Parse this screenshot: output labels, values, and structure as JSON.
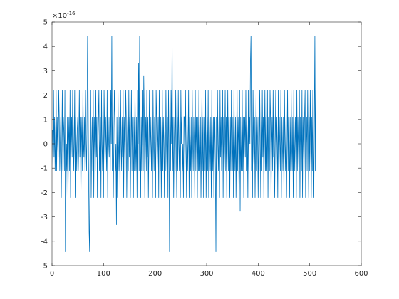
{
  "chart_data": {
    "type": "line",
    "color": "#0072bd",
    "xlim": [
      0,
      600
    ],
    "xticks": [
      0,
      100,
      200,
      300,
      400,
      500,
      600
    ],
    "ylim": [
      -5,
      5
    ],
    "yticks": [
      -5,
      -4,
      -3,
      -2,
      -1,
      0,
      1,
      2,
      3,
      4,
      5
    ],
    "y_scale_label": {
      "base": "×10",
      "exponent": "-16"
    },
    "grid": false,
    "x": [
      1,
      2,
      3,
      4,
      5,
      6,
      7,
      8,
      9,
      10,
      11,
      12,
      13,
      14,
      15,
      16,
      17,
      18,
      19,
      20,
      21,
      22,
      23,
      24,
      25,
      26,
      27,
      28,
      29,
      30,
      31,
      32,
      33,
      34,
      35,
      36,
      37,
      38,
      39,
      40,
      41,
      42,
      43,
      44,
      45,
      46,
      47,
      48,
      49,
      50,
      51,
      52,
      53,
      54,
      55,
      56,
      57,
      58,
      59,
      60,
      61,
      62,
      63,
      64,
      65,
      66,
      67,
      68,
      69,
      70,
      71,
      72,
      73,
      74,
      75,
      76,
      77,
      78,
      79,
      80,
      81,
      82,
      83,
      84,
      85,
      86,
      87,
      88,
      89,
      90,
      91,
      92,
      93,
      94,
      95,
      96,
      97,
      98,
      99,
      100,
      101,
      102,
      103,
      104,
      105,
      106,
      107,
      108,
      109,
      110,
      111,
      112,
      113,
      114,
      115,
      116,
      117,
      118,
      119,
      120,
      121,
      122,
      123,
      124,
      125,
      126,
      127,
      128,
      129,
      130,
      131,
      132,
      133,
      134,
      135,
      136,
      137,
      138,
      139,
      140,
      141,
      142,
      143,
      144,
      145,
      146,
      147,
      148,
      149,
      150,
      151,
      152,
      153,
      154,
      155,
      156,
      157,
      158,
      159,
      160,
      161,
      162,
      163,
      164,
      165,
      166,
      167,
      168,
      169,
      170,
      171,
      172,
      173,
      174,
      175,
      176,
      177,
      178,
      179,
      180,
      181,
      182,
      183,
      184,
      185,
      186,
      187,
      188,
      189,
      190,
      191,
      192,
      193,
      194,
      195,
      196,
      197,
      198,
      199,
      200,
      201,
      202,
      203,
      204,
      205,
      206,
      207,
      208,
      209,
      210,
      211,
      212,
      213,
      214,
      215,
      216,
      217,
      218,
      219,
      220,
      221,
      222,
      223,
      224,
      225,
      226,
      227,
      228,
      229,
      230,
      231,
      232,
      233,
      234,
      235,
      236,
      237,
      238,
      239,
      240,
      241,
      242,
      243,
      244,
      245,
      246,
      247,
      248,
      249,
      250,
      251,
      252,
      253,
      254,
      255,
      256,
      257,
      258,
      259,
      260,
      261,
      262,
      263,
      264,
      265,
      266,
      267,
      268,
      269,
      270,
      271,
      272,
      273,
      274,
      275,
      276,
      277,
      278,
      279,
      280,
      281,
      282,
      283,
      284,
      285,
      286,
      287,
      288,
      289,
      290,
      291,
      292,
      293,
      294,
      295,
      296,
      297,
      298,
      299,
      300,
      301,
      302,
      303,
      304,
      305,
      306,
      307,
      308,
      309,
      310,
      311,
      312,
      313,
      314,
      315,
      316,
      317,
      318,
      319,
      320,
      321,
      322,
      323,
      324,
      325,
      326,
      327,
      328,
      329,
      330,
      331,
      332,
      333,
      334,
      335,
      336,
      337,
      338,
      339,
      340,
      341,
      342,
      343,
      344,
      345,
      346,
      347,
      348,
      349,
      350,
      351,
      352,
      353,
      354,
      355,
      356,
      357,
      358,
      359,
      360,
      361,
      362,
      363,
      364,
      365,
      366,
      367,
      368,
      369,
      370,
      371,
      372,
      373,
      374,
      375,
      376,
      377,
      378,
      379,
      380,
      381,
      382,
      383,
      384,
      385,
      386,
      387,
      388,
      389,
      390,
      391,
      392,
      393,
      394,
      395,
      396,
      397,
      398,
      399,
      400,
      401,
      402,
      403,
      404,
      405,
      406,
      407,
      408,
      409,
      410,
      411,
      412,
      413,
      414,
      415,
      416,
      417,
      418,
      419,
      420,
      421,
      422,
      423,
      424,
      425,
      426,
      427,
      428,
      429,
      430,
      431,
      432,
      433,
      434,
      435,
      436,
      437,
      438,
      439,
      440,
      441,
      442,
      443,
      444,
      445,
      446,
      447,
      448,
      449,
      450,
      451,
      452,
      453,
      454,
      455,
      456,
      457,
      458,
      459,
      460,
      461,
      462,
      463,
      464,
      465,
      466,
      467,
      468,
      469,
      470,
      471,
      472,
      473,
      474,
      475,
      476,
      477,
      478,
      479,
      480,
      481,
      482,
      483,
      484,
      485,
      486,
      487,
      488,
      489,
      490,
      491,
      492,
      493,
      494,
      495,
      496,
      497,
      498,
      499,
      500,
      501,
      502,
      503,
      504,
      505,
      506,
      507,
      508,
      509,
      510,
      511,
      512
    ],
    "values": [
      0.56,
      -1.11,
      2.22,
      -0.56,
      1.11,
      -1.11,
      0,
      2.22,
      -1.11,
      1.11,
      0,
      -0.56,
      2.22,
      1.11,
      -1.11,
      0,
      1.11,
      -2.22,
      0,
      2.22,
      -1.11,
      1.11,
      0.56,
      -1.11,
      2.22,
      -4.44,
      -2.5,
      0,
      -1.11,
      1.11,
      -2.22,
      0,
      1.11,
      -1.11,
      2.22,
      -2.22,
      0,
      1.11,
      -0.56,
      2.22,
      1.11,
      -1.11,
      0,
      2.22,
      -2.22,
      1.11,
      0,
      -1.11,
      0.56,
      1.11,
      -1.11,
      0,
      2.22,
      -0.56,
      1.11,
      -2.22,
      0,
      1.11,
      -1.11,
      2.22,
      0,
      -0.56,
      1.11,
      -1.11,
      2.22,
      0,
      -1.11,
      1.11,
      4.44,
      2.22,
      -1.11,
      -3.6,
      -4.44,
      1.11,
      2.22,
      -2.22,
      0,
      1.11,
      -1.11,
      2.22,
      -2.22,
      1.11,
      0,
      -1.11,
      2.22,
      -0.56,
      1.11,
      -2.22,
      0,
      1.11,
      2.22,
      -1.11,
      0,
      1.11,
      -2.22,
      2.22,
      0,
      -1.11,
      1.11,
      -2.22,
      2.22,
      0.56,
      -1.11,
      1.11,
      0,
      -1.11,
      2.22,
      -2.22,
      1.11,
      0,
      -0.56,
      1.11,
      -1.11,
      2.22,
      0,
      4.44,
      -1.11,
      1.11,
      -2.22,
      0,
      2.22,
      1.11,
      -1.11,
      0,
      -3.33,
      1.11,
      -2.22,
      2.22,
      0,
      -1.11,
      1.11,
      -2.22,
      2.22,
      0,
      -1.11,
      1.11,
      -0.56,
      2.22,
      -2.22,
      1.11,
      0,
      -1.11,
      2.22,
      1.11,
      -2.22,
      0,
      1.11,
      -1.11,
      2.22,
      -0.56,
      1.11,
      -2.22,
      0,
      2.22,
      -1.11,
      1.11,
      0,
      -2.22,
      1.11,
      -1.11,
      2.22,
      0,
      -1.11,
      1.11,
      -2.22,
      2.22,
      0,
      3.33,
      -1.11,
      4.44,
      0,
      -2.22,
      1.11,
      -1.11,
      2.22,
      0,
      -1.11,
      2.78,
      1.11,
      -2.22,
      0,
      1.11,
      -1.11,
      2.22,
      -0.56,
      1.11,
      -2.22,
      0,
      2.22,
      -1.11,
      1.11,
      0,
      -1.11,
      1.11,
      -2.22,
      2.22,
      0,
      -1.11,
      1.11,
      0,
      -2.22,
      2.22,
      1.11,
      -1.11,
      0,
      1.11,
      -2.22,
      2.22,
      0,
      -1.11,
      1.11,
      -2.22,
      0,
      2.22,
      -1.11,
      1.11,
      0,
      -2.22,
      1.11,
      -1.11,
      2.22,
      0,
      -1.11,
      1.11,
      -2.22,
      2.22,
      0,
      -4.44,
      1.11,
      -1.11,
      2.22,
      0,
      4.44,
      -1.11,
      1.11,
      -2.22,
      0,
      1.11,
      -1.11,
      2.22,
      0,
      -2.22,
      1.11,
      -1.11,
      2.22,
      0,
      -1.11,
      1.11,
      -2.22,
      2.22,
      0,
      1.11,
      -1.11,
      0,
      -2.22,
      1.11,
      1.11,
      -1.11,
      2.22,
      0,
      -2.22,
      1.11,
      -1.11,
      0,
      2.22,
      -2.22,
      1.11,
      0,
      -1.11,
      1.11,
      -2.22,
      2.22,
      0,
      -1.11,
      1.11,
      0,
      -2.22,
      2.22,
      -1.11,
      1.11,
      0,
      -2.22,
      1.11,
      -1.11,
      2.22,
      0,
      -1.11,
      1.11,
      -2.22,
      0,
      2.22,
      -1.11,
      1.11,
      -2.22,
      0,
      1.11,
      -1.11,
      2.22,
      -2.22,
      0,
      1.11,
      -1.11,
      2.22,
      -2.22,
      1.11,
      0,
      -1.11,
      1.11,
      -2.22,
      2.22,
      0,
      -1.11,
      1.11,
      -2.22,
      0,
      1.11,
      -1.11,
      -4.44,
      1.11,
      -2.22,
      2.22,
      0,
      -1.11,
      1.11,
      -2.22,
      2.22,
      -0.56,
      1.11,
      -1.11,
      0,
      2.22,
      -2.22,
      1.11,
      -1.11,
      0,
      2.22,
      -1.11,
      1.11,
      -2.22,
      0,
      2.22,
      -1.11,
      1.11,
      0,
      -2.22,
      1.11,
      -1.11,
      2.22,
      0,
      -1.11,
      1.11,
      -2.22,
      2.22,
      0,
      -1.11,
      1.11,
      -2.22,
      0,
      2.22,
      -1.11,
      1.11,
      0,
      -2.22,
      2.22,
      -2.78,
      1.11,
      -1.11,
      0,
      2.22,
      -1.11,
      1.11,
      -2.22,
      0,
      1.11,
      -0.56,
      2.22,
      -1.11,
      1.11,
      0,
      -2.22,
      2.22,
      -1.11,
      1.11,
      0,
      3.33,
      4.44,
      -1.11,
      1.11,
      -2.22,
      2.22,
      0,
      -1.11,
      1.11,
      -2.22,
      0,
      2.22,
      -1.11,
      1.11,
      0,
      -2.22,
      1.11,
      -1.11,
      2.22,
      0,
      -2.22,
      1.11,
      -1.11,
      2.22,
      -0.56,
      1.11,
      -2.22,
      0,
      2.22,
      -1.11,
      1.11,
      0,
      -1.11,
      2.22,
      -2.22,
      1.11,
      0,
      -1.11,
      2.22,
      1.11,
      -2.22,
      0,
      1.11,
      -1.11,
      2.22,
      -0.56,
      1.11,
      -2.22,
      0,
      2.22,
      -1.11,
      1.11,
      0,
      -2.22,
      2.22,
      -1.11,
      1.11,
      0,
      -1.11,
      2.22,
      -2.22,
      1.11,
      0,
      -1.11,
      1.11,
      -2.22,
      2.22,
      0,
      -1.11,
      1.11,
      -2.22,
      0,
      2.22,
      -1.11,
      1.11,
      0,
      -2.22,
      1.11,
      -1.11,
      2.22,
      0,
      -1.11,
      1.11,
      -2.22,
      2.22,
      0,
      -1.11,
      1.11,
      0,
      -2.22,
      2.22,
      -1.11,
      1.11,
      0,
      -1.11,
      2.22,
      -2.22,
      1.11,
      0,
      -1.11,
      2.22,
      -2.22,
      1.11,
      0,
      -1.11,
      1.11,
      2.22,
      -2.22,
      0,
      1.11,
      -1.11,
      2.22,
      0,
      -2.22,
      1.11,
      -1.11,
      2.22,
      0,
      -2.22,
      1.11,
      -1.11,
      2.22,
      0,
      -2.22,
      1.11,
      4.44,
      -1.11,
      2.22
    ]
  }
}
